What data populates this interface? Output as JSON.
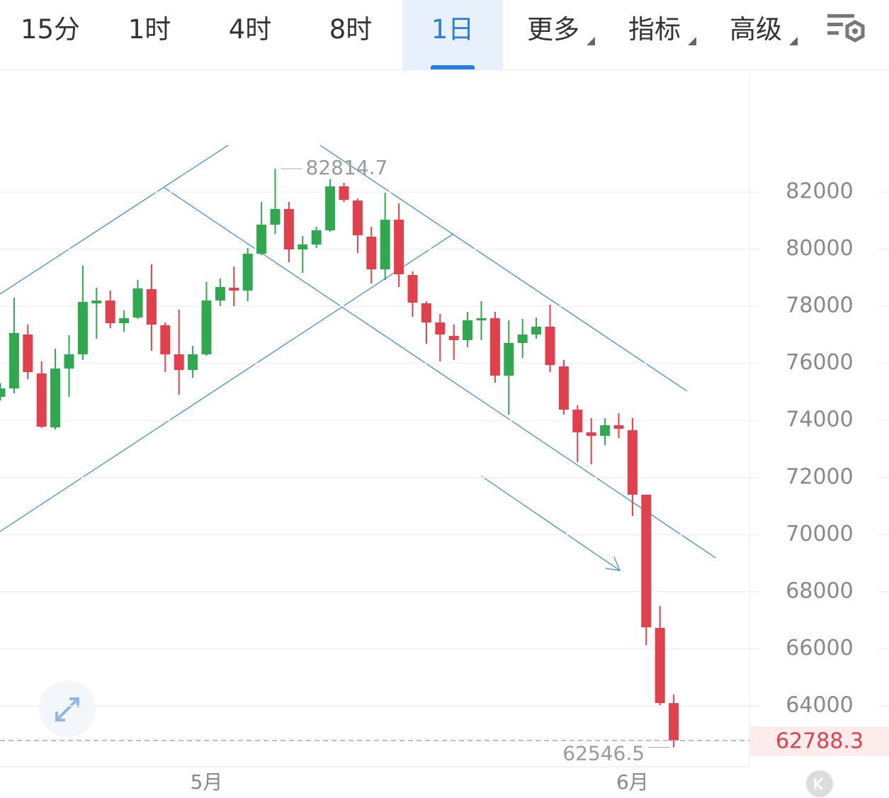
{
  "tabs": [
    "15分",
    "1时",
    "4时",
    "8时",
    "1日",
    "更多",
    "指标",
    "高级"
  ],
  "chart_data": {
    "type": "candlestick",
    "categories": [
      null,
      null,
      null,
      null,
      null,
      null,
      null,
      null,
      null,
      null,
      null,
      null,
      null,
      null,
      null,
      "5月",
      null,
      null,
      null,
      null,
      null,
      null,
      null,
      null,
      null,
      null,
      null,
      null,
      null,
      null,
      null,
      null,
      null,
      null,
      null,
      null,
      null,
      null,
      null,
      null,
      null,
      null,
      null,
      null,
      null,
      null,
      "6月",
      null,
      null,
      null
    ],
    "open": [
      74824,
      75122,
      77010,
      75644,
      73757,
      75817,
      76314,
      78100,
      78201,
      77406,
      77605,
      78598,
      77332,
      76314,
      75768,
      76314,
      78201,
      78648,
      78549,
      79840,
      80858,
      81404,
      79989,
      80163,
      80659,
      82199,
      81702,
      80436,
      79294,
      81032,
      79095,
      78102,
      77431,
      76960,
      76811,
      77506,
      77580,
      75569,
      76712,
      77009,
      77282,
      75892,
      74377,
      73583,
      73458,
      73831,
      73657,
      71398,
      66729,
      64098
    ],
    "high": [
      75300,
      78300,
      77357,
      76066,
      76513,
      76984,
      79418,
      78648,
      78549,
      77853,
      78921,
      79467,
      77431,
      77878,
      76612,
      78847,
      78971,
      79393,
      80038,
      81652,
      82814.7,
      81652,
      80460,
      80783,
      82447,
      82323,
      81777,
      80783,
      81975,
      81603,
      79219,
      78176,
      77729,
      77357,
      77804,
      78176,
      77804,
      77506,
      77555,
      77605,
      78052,
      76115,
      74526,
      74079,
      74079,
      74253,
      74079,
      71398,
      67499,
      64396
    ],
    "low": [
      74700,
      74948,
      75445,
      73732,
      73682,
      74824,
      76115,
      76860,
      77233,
      77109,
      77555,
      76438,
      75693,
      74899,
      75495,
      76264,
      78002,
      78002,
      78176,
      79790,
      80535,
      79542,
      79170,
      80038,
      80609,
      81652,
      79865,
      78797,
      78921,
      78673,
      77630,
      76686,
      76066,
      76115,
      76562,
      76811,
      75321,
      74204,
      76190,
      76860,
      75693,
      74204,
      72540,
      72465,
      73136,
      73384,
      70653,
      66133,
      64023,
      62546.5
    ],
    "close": [
      75122,
      77059,
      75693,
      73781,
      75817,
      76314,
      78151,
      78200,
      77406,
      77580,
      78623,
      77357,
      76314,
      75768,
      76314,
      78201,
      78673,
      78549,
      79840,
      80858,
      81404,
      79989,
      80163,
      80659,
      82199,
      81727,
      80485,
      79294,
      81032,
      79120,
      78127,
      77431,
      77009,
      76811,
      77506,
      77580,
      75569,
      76712,
      77009,
      77282,
      75941,
      74377,
      73583,
      73458,
      73831,
      73707,
      71398,
      66754,
      64098,
      62788.3
    ],
    "up_color": "#2fa84f",
    "down_color": "#e2404c",
    "ylim": [
      61865,
      86295
    ],
    "yticks": [
      64000,
      66000,
      68000,
      70000,
      72000,
      74000,
      76000,
      78000,
      80000,
      82000
    ],
    "grid": true
  }
}
